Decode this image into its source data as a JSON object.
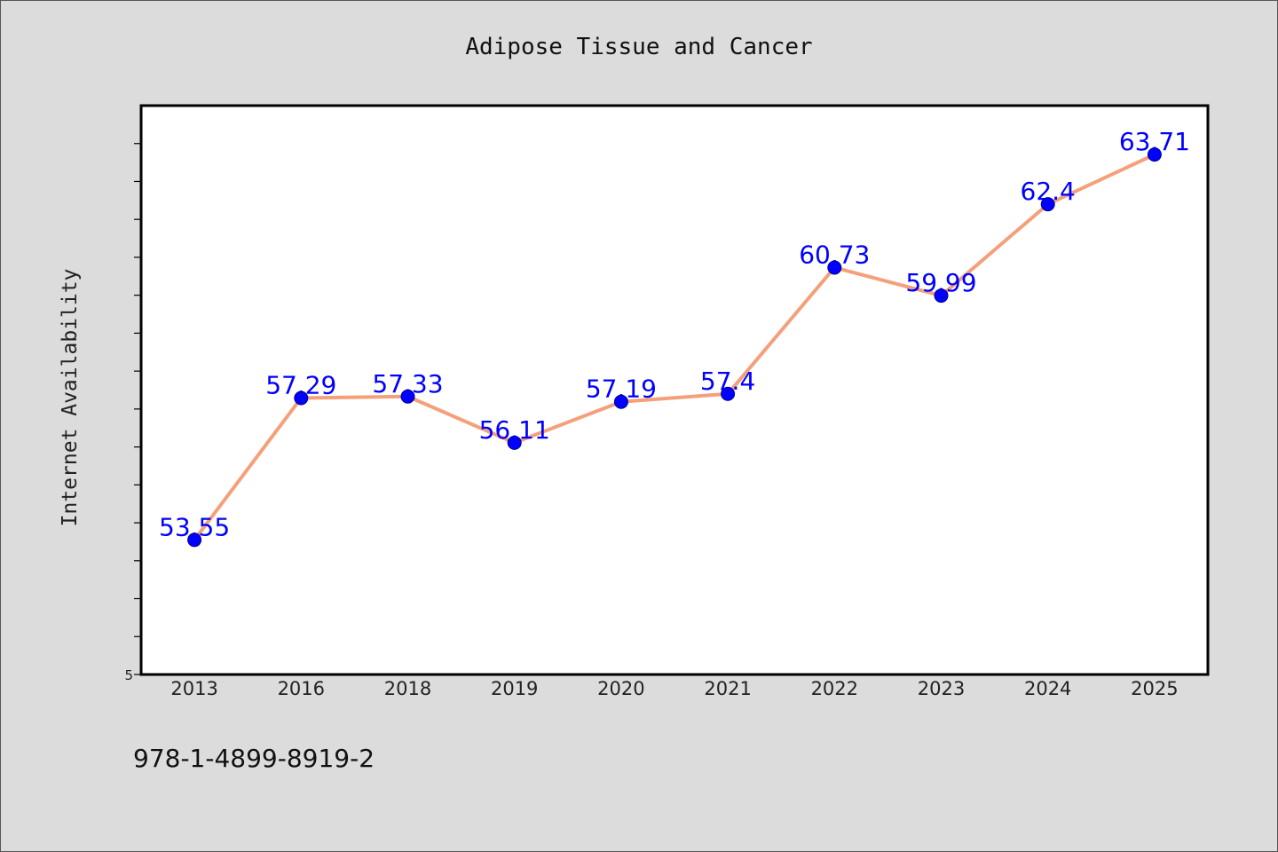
{
  "colors": {
    "background": "#dcdcdc",
    "plot_background": "#ffffff",
    "frame": "#000000"
  },
  "chart_data": {
    "type": "line",
    "title": "Adipose Tissue and Cancer",
    "ylabel": "Internet Availability",
    "categories": [
      "2013",
      "2016",
      "2018",
      "2019",
      "2020",
      "2021",
      "2022",
      "2023",
      "2024",
      "2025"
    ],
    "series": [
      {
        "values": [
          53.55,
          57.29,
          57.33,
          56.11,
          57.19,
          57.4,
          60.73,
          59.99,
          62.4,
          63.71
        ],
        "line_color": "#f4a07a",
        "marker": "circle",
        "marker_color": "#0000ff",
        "data_label_color": "#0000ff"
      }
    ],
    "data_labels": true,
    "ylim": [
      50,
      65
    ],
    "yticks": [
      50,
      51,
      52,
      53,
      54,
      55,
      56,
      57,
      58,
      59,
      60,
      61,
      62,
      63,
      64
    ],
    "ytick_labels": [
      {
        "value": 50,
        "label": "5"
      }
    ],
    "grid": false,
    "legend": "none"
  },
  "footer": {
    "text": "978-1-4899-8919-2"
  }
}
